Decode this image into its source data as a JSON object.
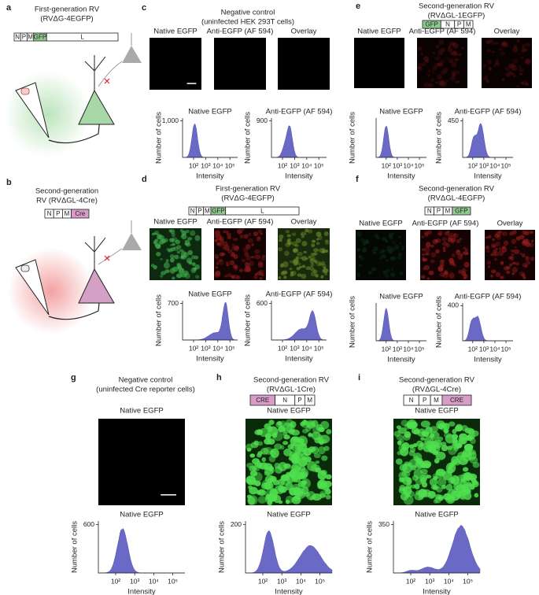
{
  "panels": [
    {
      "letter": "a",
      "title": "First-generation RV",
      "subtitle": "(RVΔG-4EGFP)",
      "genes": [
        {
          "label": "N"
        },
        {
          "label": "P"
        },
        {
          "label": "M"
        },
        {
          "label": "GFP",
          "color": "#8fc98f"
        },
        {
          "label": "L"
        }
      ]
    },
    {
      "letter": "b",
      "title": "Second-generation",
      "subtitle": "RV (RVΔGL-4Cre)",
      "genes": [
        {
          "label": "N"
        },
        {
          "label": "P"
        },
        {
          "label": "M"
        },
        {
          "label": "Cre",
          "color": "#d79cc8"
        }
      ]
    },
    {
      "letter": "c",
      "title": "Negative control",
      "subtitle": "(uninfected HEK 293T cells)",
      "images": [
        "Native EGFP",
        "Anti-EGFP (AF 594)",
        "Overlay"
      ],
      "hists": [
        {
          "title": "Native EGFP",
          "ylabel": "Number of cells",
          "xlabel": "Intensity",
          "yticks": [
            "1,000"
          ],
          "xticks": [
            "10²",
            "10³",
            "10⁴",
            "10⁵"
          ]
        },
        {
          "title": "Anti-EGFP (AF 594)",
          "ylabel": "Number of cells",
          "xlabel": "Intensity",
          "yticks": [
            "900"
          ],
          "xticks": [
            "10²",
            "10³",
            "10⁴",
            "10⁵"
          ]
        }
      ]
    },
    {
      "letter": "d",
      "title": "First-generation RV",
      "subtitle": "(RVΔG-4EGFP)",
      "genes": [
        {
          "label": "N"
        },
        {
          "label": "P"
        },
        {
          "label": "M"
        },
        {
          "label": "GFP",
          "color": "#8fc98f"
        },
        {
          "label": "L"
        }
      ],
      "images": [
        "Native EGFP",
        "Anti-EGFP (AF 594)",
        "Overlay"
      ],
      "hists": [
        {
          "title": "Native EGFP",
          "ylabel": "Number of cells",
          "xlabel": "Intensity",
          "yticks": [
            "700"
          ],
          "xticks": [
            "10²",
            "10³",
            "10⁴",
            "10⁵"
          ]
        },
        {
          "title": "Anti-EGFP (AF 594)",
          "ylabel": "Number of cells",
          "xlabel": "Intensity",
          "yticks": [
            "600"
          ],
          "xticks": [
            "10²",
            "10³",
            "10⁴",
            "10⁵"
          ]
        }
      ]
    },
    {
      "letter": "e",
      "title": "Second-generation RV",
      "subtitle": "(RVΔGL-1EGFP)",
      "genes": [
        {
          "label": "GFP",
          "color": "#8fc98f"
        },
        {
          "label": "N"
        },
        {
          "label": "P"
        },
        {
          "label": "M"
        }
      ],
      "images": [
        "Native EGFP",
        "Anti-EGFP (AF 594)",
        "Overlay"
      ],
      "hists": [
        {
          "title": "Native EGFP",
          "ylabel": "Number of cells",
          "xlabel": "Intensity",
          "yticks": [],
          "xticks": [
            "10²",
            "10³",
            "10⁴",
            "10⁵"
          ]
        },
        {
          "title": "Anti-EGFP (AF 594)",
          "ylabel": "Number of cells",
          "xlabel": "Intensity",
          "yticks": [
            "450"
          ],
          "xticks": [
            "10²",
            "10³",
            "10⁴",
            "10⁵"
          ]
        }
      ]
    },
    {
      "letter": "f",
      "title": "Second-generation RV",
      "subtitle": "(RVΔGL-4EGFP)",
      "genes": [
        {
          "label": "N"
        },
        {
          "label": "P"
        },
        {
          "label": "M"
        },
        {
          "label": "GFP",
          "color": "#8fc98f"
        }
      ],
      "images": [
        "Native EGFP",
        "Anti-EGFP (AF 594)",
        "Overlay"
      ],
      "hists": [
        {
          "title": "Native EGFP",
          "ylabel": "Number of cells",
          "xlabel": "Intensity",
          "yticks": [],
          "xticks": [
            "10²",
            "10³",
            "10⁴",
            "10⁵"
          ]
        },
        {
          "title": "Anti-EGFP (AF 594)",
          "ylabel": "Number of cells",
          "xlabel": "Intensity",
          "yticks": [
            "400"
          ],
          "xticks": [
            "10²",
            "10³",
            "10⁴",
            "10⁵"
          ]
        }
      ]
    },
    {
      "letter": "g",
      "title": "Negative control",
      "subtitle": "(uninfected Cre reporter cells)",
      "images": [
        "Native EGFP"
      ],
      "hists": [
        {
          "title": "Native EGFP",
          "ylabel": "Number of cells",
          "xlabel": "Intensity",
          "yticks": [
            "600"
          ],
          "xticks": [
            "10²",
            "10³",
            "10⁴",
            "10⁵"
          ]
        }
      ]
    },
    {
      "letter": "h",
      "title": "Second-generation RV",
      "subtitle": "(RVΔGL-1Cre)",
      "genes": [
        {
          "label": "CRE",
          "color": "#d79cc8"
        },
        {
          "label": "N"
        },
        {
          "label": "P"
        },
        {
          "label": "M"
        }
      ],
      "images": [
        "Native EGFP"
      ],
      "hists": [
        {
          "title": "Native EGFP",
          "ylabel": "Number of cells",
          "xlabel": "Intensity",
          "yticks": [
            "200"
          ],
          "xticks": [
            "10²",
            "10³",
            "10⁴",
            "10⁵"
          ]
        }
      ]
    },
    {
      "letter": "i",
      "title": "Second-generation RV",
      "subtitle": "(RVΔGL-4Cre)",
      "genes": [
        {
          "label": "N"
        },
        {
          "label": "P"
        },
        {
          "label": "M"
        },
        {
          "label": "CRE",
          "color": "#d79cc8"
        }
      ],
      "images": [
        "Native EGFP"
      ],
      "hists": [
        {
          "title": "Native EGFP",
          "ylabel": "Number of cells",
          "xlabel": "Intensity",
          "yticks": [
            "350"
          ],
          "xticks": [
            "10²",
            "10³",
            "10⁴",
            "10⁵"
          ]
        }
      ]
    }
  ]
}
